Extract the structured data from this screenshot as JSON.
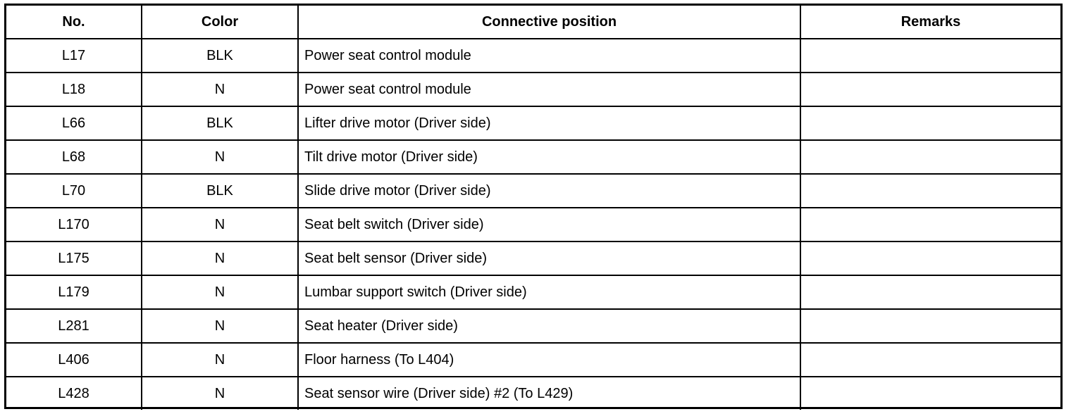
{
  "headers": {
    "no": "No.",
    "color": "Color",
    "position": "Connective position",
    "remarks": "Remarks"
  },
  "rows": [
    {
      "no": "L17",
      "color": "BLK",
      "position": "Power seat control module",
      "remarks": ""
    },
    {
      "no": "L18",
      "color": "N",
      "position": "Power seat control module",
      "remarks": ""
    },
    {
      "no": "L66",
      "color": "BLK",
      "position": "Lifter drive motor (Driver side)",
      "remarks": ""
    },
    {
      "no": "L68",
      "color": "N",
      "position": "Tilt drive motor (Driver side)",
      "remarks": ""
    },
    {
      "no": "L70",
      "color": "BLK",
      "position": "Slide drive motor (Driver side)",
      "remarks": ""
    },
    {
      "no": "L170",
      "color": "N",
      "position": "Seat belt switch (Driver side)",
      "remarks": ""
    },
    {
      "no": "L175",
      "color": "N",
      "position": "Seat belt sensor (Driver side)",
      "remarks": ""
    },
    {
      "no": "L179",
      "color": "N",
      "position": "Lumbar support switch (Driver side)",
      "remarks": ""
    },
    {
      "no": "L281",
      "color": "N",
      "position": "Seat heater (Driver side)",
      "remarks": ""
    },
    {
      "no": "L406",
      "color": "N",
      "position": "Floor harness (To L404)",
      "remarks": ""
    },
    {
      "no": "L428",
      "color": "N",
      "position": "Seat sensor wire (Driver side) #2 (To L429)",
      "remarks": ""
    }
  ]
}
